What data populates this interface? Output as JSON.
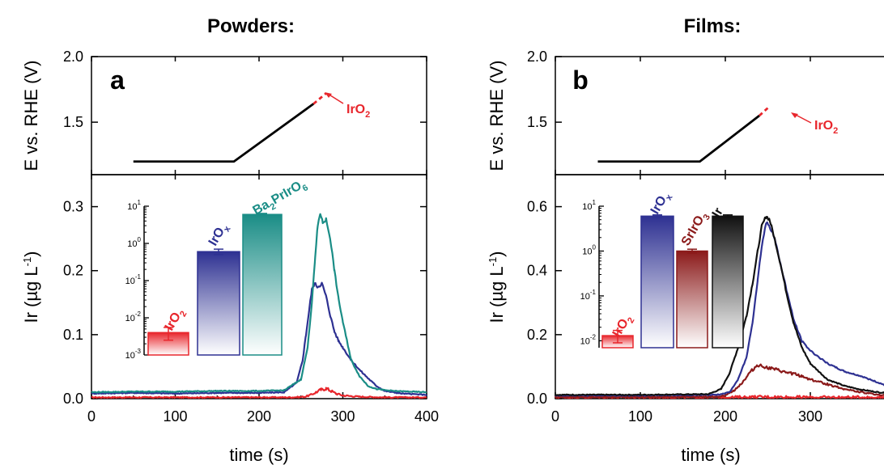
{
  "chart_data": [
    {
      "type": "line",
      "panel": "a",
      "title": "Powders:",
      "xlabel": "time (s)",
      "xlim": [
        0,
        400
      ],
      "x_ticks": [
        "0",
        "100",
        "200",
        "300",
        "400"
      ],
      "potential_panel": {
        "ylabel": "E vs. RHE (V)",
        "ylim": [
          1.1,
          2.0
        ],
        "y_ticks": [
          "1.5",
          "2.0"
        ],
        "annotation": "IrO2",
        "trace": {
          "x": [
            50,
            170,
            265
          ],
          "y": [
            1.2,
            1.2,
            1.64
          ]
        },
        "dashed_extension": {
          "x": [
            265,
            280
          ],
          "y": [
            1.64,
            1.72
          ],
          "color": "#e8262c"
        }
      },
      "dissolution_panel": {
        "ylabel": "Ir (µg L-1)",
        "ylim": [
          0,
          0.35
        ],
        "y_ticks": [
          "0.0",
          "0.1",
          "0.2",
          "0.3"
        ],
        "series": [
          {
            "name": "IrO2",
            "color": "#e8262c",
            "x": [
              0,
              50,
              100,
              150,
              200,
              240,
              255,
              262,
              268,
              274,
              280,
              286,
              292,
              300,
              320,
              350,
              400
            ],
            "y": [
              0.002,
              0.002,
              0.002,
              0.002,
              0.002,
              0.002,
              0.003,
              0.006,
              0.01,
              0.014,
              0.016,
              0.012,
              0.008,
              0.005,
              0.003,
              0.002,
              0.002
            ]
          },
          {
            "name": "IrOx",
            "color": "#2e3192",
            "x": [
              0,
              50,
              100,
              150,
              200,
              230,
              245,
              252,
              256,
              260,
              263,
              266,
              270,
              275,
              280,
              285,
              290,
              295,
              300,
              310,
              320,
              330,
              340,
              350,
              370,
              400
            ],
            "y": [
              0.008,
              0.009,
              0.008,
              0.009,
              0.009,
              0.01,
              0.025,
              0.06,
              0.1,
              0.14,
              0.17,
              0.18,
              0.175,
              0.18,
              0.16,
              0.13,
              0.105,
              0.09,
              0.08,
              0.06,
              0.045,
              0.032,
              0.02,
              0.012,
              0.008,
              0.006
            ]
          },
          {
            "name": "Ba2PrIrO6",
            "color": "#1a8d86",
            "x": [
              0,
              50,
              100,
              150,
              200,
              230,
              250,
              258,
              263,
              267,
              270,
              273,
              276,
              280,
              285,
              290,
              295,
              300,
              305,
              310,
              320,
              330,
              340,
              360,
              400
            ],
            "y": [
              0.01,
              0.011,
              0.011,
              0.012,
              0.012,
              0.013,
              0.03,
              0.08,
              0.15,
              0.22,
              0.27,
              0.29,
              0.275,
              0.28,
              0.25,
              0.2,
              0.155,
              0.12,
              0.09,
              0.06,
              0.035,
              0.02,
              0.015,
              0.012,
              0.01
            ]
          }
        ]
      },
      "inset": {
        "type": "bar",
        "scale": "log",
        "ylim": [
          0.001,
          10
        ],
        "y_ticks": [
          "10-3",
          "10-2",
          "10-1",
          "100",
          "101"
        ],
        "categories": [
          "IrO2",
          "IrOx",
          "Ba2PrIrO6"
        ],
        "values": [
          0.004,
          0.6,
          6.0
        ],
        "error": [
          0.0015,
          0.1,
          0.4
        ],
        "colors": [
          "#e8262c",
          "#2e3192",
          "#1a8d86"
        ]
      }
    },
    {
      "type": "line",
      "panel": "b",
      "title": "Films:",
      "xlabel": "time (s)",
      "xlim": [
        0,
        400
      ],
      "x_ticks": [
        "0",
        "100",
        "200",
        "300"
      ],
      "potential_panel": {
        "ylabel": "E vs. RHE (V)",
        "ylim": [
          1.1,
          2.0
        ],
        "y_ticks": [
          "1.5",
          "2.0"
        ],
        "annotation": "IrO2",
        "trace": {
          "x": [
            50,
            170,
            240
          ],
          "y": [
            1.2,
            1.2,
            1.55
          ]
        },
        "dashed_extension": {
          "x": [
            240,
            252
          ],
          "y": [
            1.55,
            1.62
          ],
          "color": "#e8262c"
        }
      },
      "dissolution_panel": {
        "ylabel": "Ir (µg L-1)",
        "ylim": [
          0,
          0.7
        ],
        "y_ticks": [
          "0.0",
          "0.2",
          "0.4",
          "0.6"
        ],
        "series": [
          {
            "name": "IrO2",
            "color": "#e8262c",
            "x": [
              0,
              100,
              200,
              250,
              300,
              400
            ],
            "y": [
              0.004,
              0.004,
              0.004,
              0.005,
              0.004,
              0.004
            ]
          },
          {
            "name": "SrIrO3",
            "color": "#8b1a1a",
            "x": [
              0,
              100,
              190,
              200,
              210,
              220,
              230,
              238,
              245,
              252,
              260,
              270,
              280,
              290,
              300,
              320,
              340,
              360,
              380,
              400
            ],
            "y": [
              0.005,
              0.005,
              0.006,
              0.01,
              0.025,
              0.05,
              0.085,
              0.105,
              0.1,
              0.095,
              0.09,
              0.082,
              0.078,
              0.07,
              0.06,
              0.045,
              0.03,
              0.02,
              0.012,
              0.008
            ]
          },
          {
            "name": "IrOx",
            "color": "#2e3192",
            "x": [
              0,
              100,
              190,
              205,
              215,
              225,
              232,
              238,
              243,
              248,
              252,
              258,
              265,
              272,
              280,
              290,
              300,
              320,
              340,
              360,
              380,
              400
            ],
            "y": [
              0.01,
              0.01,
              0.012,
              0.02,
              0.06,
              0.13,
              0.24,
              0.37,
              0.48,
              0.55,
              0.54,
              0.5,
              0.42,
              0.34,
              0.25,
              0.18,
              0.15,
              0.11,
              0.085,
              0.07,
              0.05,
              0.03
            ]
          },
          {
            "name": "Ir",
            "color": "#111111",
            "x": [
              0,
              100,
              180,
              195,
              205,
              215,
              225,
              232,
              238,
              243,
              248,
              252,
              258,
              265,
              272,
              280,
              290,
              300,
              320,
              340,
              360,
              380,
              400
            ],
            "y": [
              0.012,
              0.012,
              0.014,
              0.03,
              0.08,
              0.16,
              0.26,
              0.36,
              0.46,
              0.54,
              0.57,
              0.56,
              0.5,
              0.42,
              0.33,
              0.24,
              0.16,
              0.11,
              0.06,
              0.04,
              0.028,
              0.02,
              0.015
            ]
          }
        ]
      },
      "inset": {
        "type": "bar",
        "scale": "log",
        "ylim": [
          0.007,
          10
        ],
        "y_ticks": [
          "10-2",
          "10-1",
          "100",
          "101"
        ],
        "categories": [
          "IrO2",
          "IrOx",
          "SrIrO3",
          "Ir"
        ],
        "values": [
          0.013,
          6.0,
          1.0,
          6.0
        ],
        "error": [
          0.004,
          0.4,
          0.1,
          0.4
        ],
        "colors": [
          "#e8262c",
          "#2e3192",
          "#8b1a1a",
          "#111111"
        ]
      }
    }
  ]
}
